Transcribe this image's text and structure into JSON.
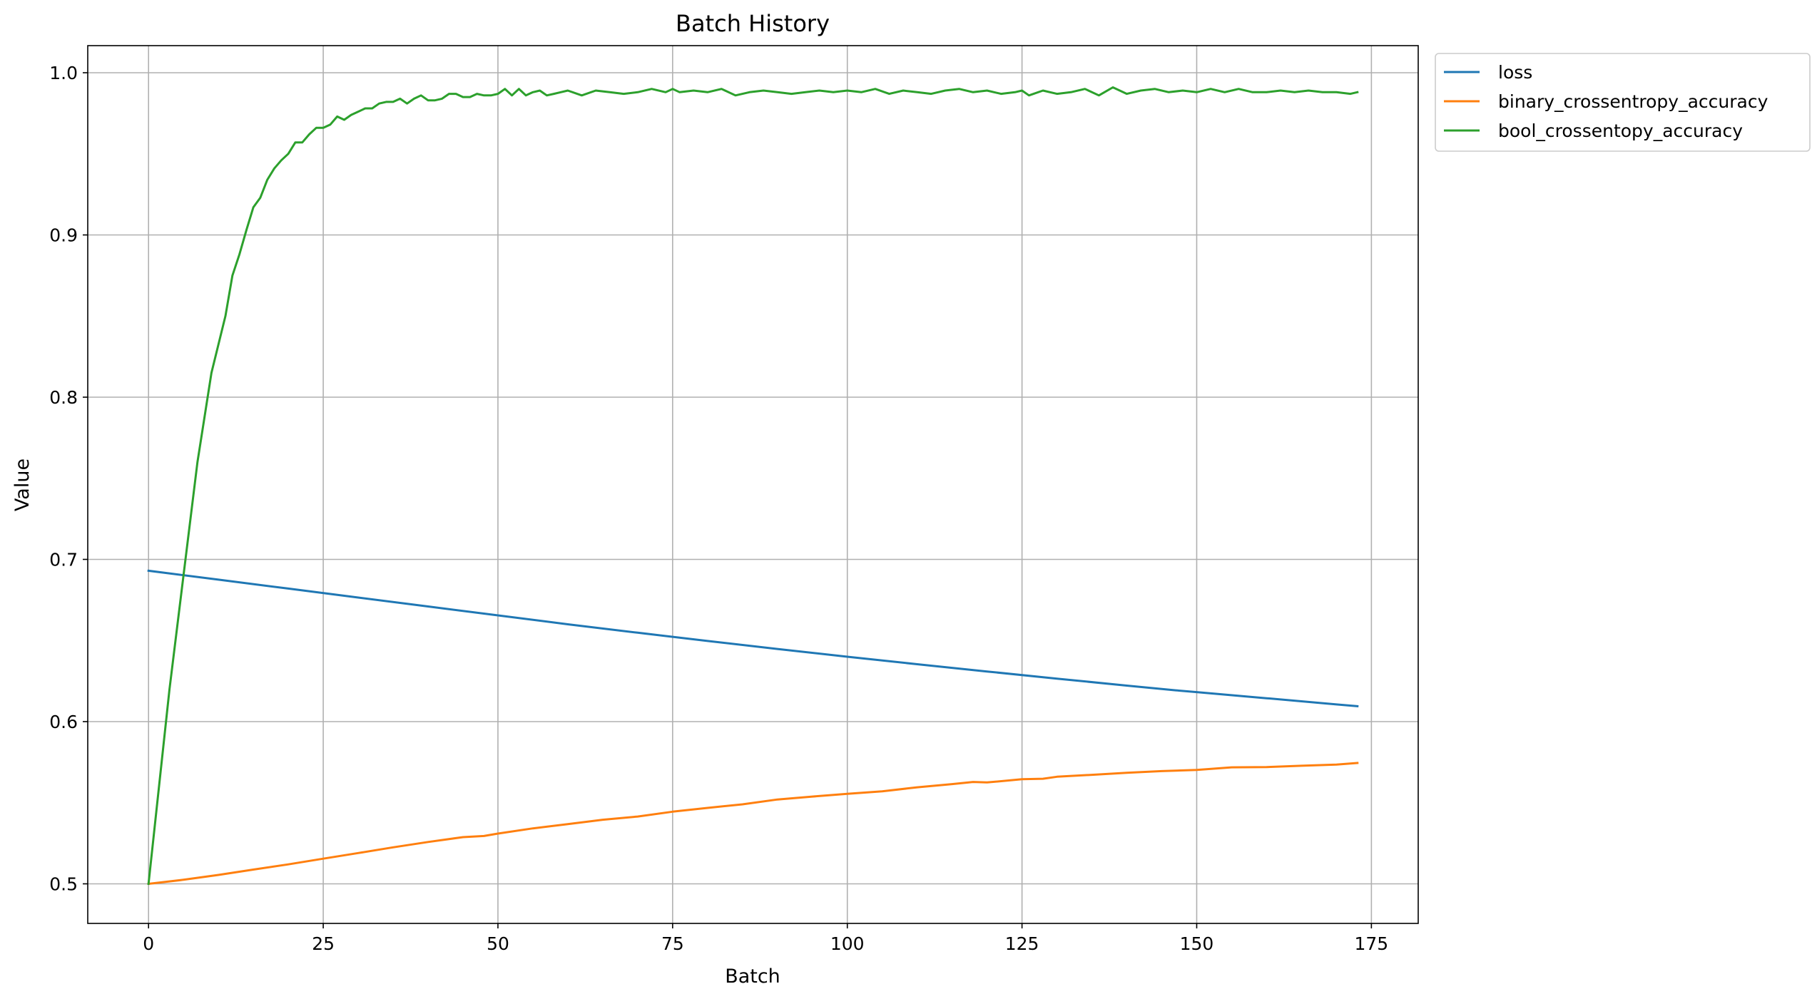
{
  "chart_data": {
    "type": "line",
    "title": "Batch History",
    "xlabel": "Batch",
    "ylabel": "Value",
    "xlim": [
      -8.7,
      181.7
    ],
    "ylim": [
      0.4756,
      1.0167
    ],
    "xticks": [
      0,
      25,
      50,
      75,
      100,
      125,
      150,
      175
    ],
    "xtick_labels": [
      "0",
      "25",
      "50",
      "75",
      "100",
      "125",
      "150",
      "175"
    ],
    "yticks": [
      0.5,
      0.6,
      0.7,
      0.8,
      0.9,
      1.0
    ],
    "ytick_labels": [
      "0.5",
      "0.6",
      "0.7",
      "0.8",
      "0.9",
      "1.0"
    ],
    "grid": true,
    "legend_position": "outside-upper-right",
    "series": [
      {
        "name": "loss",
        "color": "#1f77b4",
        "x": [
          0,
          10,
          20,
          30,
          40,
          50,
          60,
          70,
          80,
          90,
          100,
          110,
          120,
          130,
          140,
          147,
          150,
          160,
          170,
          173
        ],
        "y": [
          0.693,
          0.6875,
          0.682,
          0.6765,
          0.671,
          0.6655,
          0.66,
          0.6548,
          0.6497,
          0.6448,
          0.64,
          0.6354,
          0.6309,
          0.6265,
          0.6222,
          0.6193,
          0.6182,
          0.6144,
          0.6106,
          0.6095
        ]
      },
      {
        "name": "binary_crossentropy_accuracy",
        "color": "#ff7f0e",
        "x": [
          0,
          5,
          10,
          15,
          20,
          25,
          30,
          35,
          40,
          45,
          48,
          50,
          55,
          60,
          65,
          70,
          75,
          80,
          85,
          90,
          95,
          100,
          105,
          110,
          115,
          118,
          120,
          125,
          128,
          130,
          135,
          140,
          145,
          150,
          155,
          160,
          165,
          170,
          173
        ],
        "y": [
          0.5,
          0.5025,
          0.5055,
          0.5088,
          0.512,
          0.5155,
          0.519,
          0.5225,
          0.5258,
          0.5288,
          0.5295,
          0.531,
          0.5342,
          0.5368,
          0.5395,
          0.5415,
          0.5445,
          0.5468,
          0.549,
          0.552,
          0.5538,
          0.5555,
          0.557,
          0.5595,
          0.5615,
          0.5628,
          0.5625,
          0.5645,
          0.5648,
          0.566,
          0.5672,
          0.5685,
          0.5695,
          0.5702,
          0.5718,
          0.572,
          0.5728,
          0.5735,
          0.5745
        ]
      },
      {
        "name": "bool_crossentopy_accuracy",
        "color": "#2ca02c",
        "x": [
          0,
          3,
          5,
          7,
          9,
          11,
          12,
          13,
          14,
          15,
          16,
          17,
          18,
          19,
          20,
          21,
          22,
          23,
          24,
          25,
          26,
          27,
          28,
          29,
          30,
          31,
          32,
          33,
          34,
          35,
          36,
          37,
          38,
          39,
          40,
          41,
          42,
          43,
          44,
          45,
          46,
          47,
          48,
          49,
          50,
          51,
          52,
          53,
          54,
          55,
          56,
          57,
          58,
          59,
          60,
          62,
          64,
          66,
          68,
          70,
          72,
          74,
          75,
          76,
          78,
          80,
          82,
          84,
          86,
          88,
          90,
          92,
          94,
          96,
          98,
          100,
          102,
          104,
          106,
          108,
          110,
          112,
          114,
          116,
          118,
          120,
          122,
          124,
          125,
          126,
          128,
          130,
          132,
          134,
          136,
          138,
          140,
          142,
          144,
          146,
          148,
          150,
          152,
          154,
          156,
          158,
          160,
          162,
          164,
          166,
          168,
          170,
          172,
          173
        ],
        "y": [
          0.5,
          0.62,
          0.69,
          0.76,
          0.815,
          0.85,
          0.875,
          0.888,
          0.903,
          0.917,
          0.923,
          0.934,
          0.941,
          0.946,
          0.95,
          0.957,
          0.957,
          0.962,
          0.966,
          0.966,
          0.968,
          0.973,
          0.971,
          0.974,
          0.976,
          0.978,
          0.978,
          0.981,
          0.982,
          0.982,
          0.984,
          0.981,
          0.984,
          0.986,
          0.983,
          0.983,
          0.984,
          0.987,
          0.987,
          0.985,
          0.985,
          0.987,
          0.986,
          0.986,
          0.987,
          0.99,
          0.986,
          0.99,
          0.986,
          0.988,
          0.989,
          0.986,
          0.987,
          0.988,
          0.989,
          0.986,
          0.989,
          0.988,
          0.987,
          0.988,
          0.99,
          0.988,
          0.99,
          0.988,
          0.989,
          0.988,
          0.99,
          0.986,
          0.988,
          0.989,
          0.988,
          0.987,
          0.988,
          0.989,
          0.988,
          0.989,
          0.988,
          0.99,
          0.987,
          0.989,
          0.988,
          0.987,
          0.989,
          0.99,
          0.988,
          0.989,
          0.987,
          0.988,
          0.989,
          0.986,
          0.989,
          0.987,
          0.988,
          0.99,
          0.986,
          0.991,
          0.987,
          0.989,
          0.99,
          0.988,
          0.989,
          0.988,
          0.99,
          0.988,
          0.99,
          0.988,
          0.988,
          0.989,
          0.988,
          0.989,
          0.988,
          0.988,
          0.987,
          0.988
        ]
      }
    ]
  }
}
